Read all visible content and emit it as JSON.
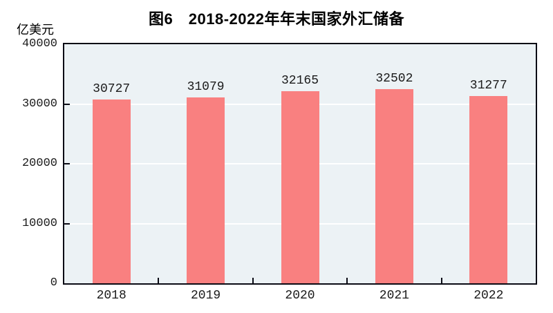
{
  "chart_data": {
    "type": "bar",
    "title": "图6　2018-2022年年末国家外汇储备",
    "unit_label": "亿美元",
    "xlabel": "",
    "ylabel": "亿美元",
    "categories": [
      "2018",
      "2019",
      "2020",
      "2021",
      "2022"
    ],
    "values": [
      30727,
      31079,
      32165,
      32502,
      31277
    ],
    "data_labels": [
      "30727",
      "31079",
      "32165",
      "32502",
      "31277"
    ],
    "ylim": [
      0,
      40000
    ],
    "y_ticks": [
      0,
      10000,
      20000,
      30000,
      40000
    ],
    "y_tick_labels": [
      "0",
      "10000",
      "20000",
      "30000",
      "40000"
    ],
    "grid": "horizontal",
    "legend": "none",
    "colors": {
      "bar_fill": "#f98080",
      "plot_background": "#ecf2f5",
      "gridline": "#ffffff",
      "axis_border": "#0a0a14",
      "text": "#000000"
    }
  }
}
